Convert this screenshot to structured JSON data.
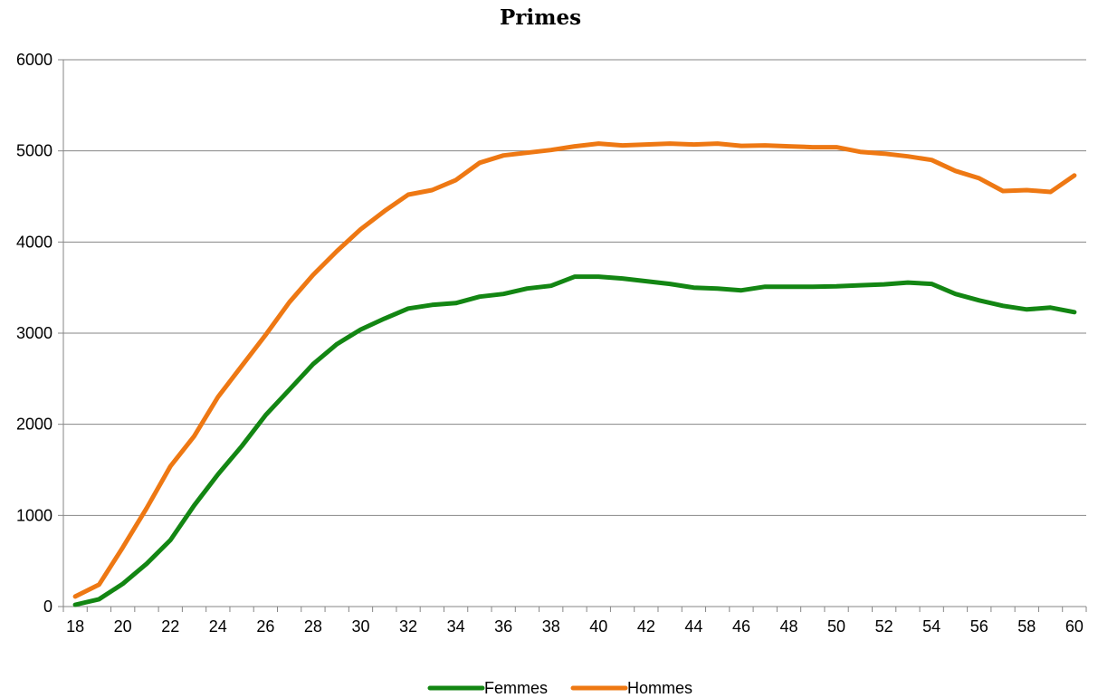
{
  "chart_data": {
    "type": "line",
    "title": "Primes",
    "xlabel": "",
    "ylabel": "",
    "ylim": [
      0,
      6000
    ],
    "yticks": [
      0,
      1000,
      2000,
      3000,
      4000,
      5000,
      6000
    ],
    "xlim": [
      18,
      60
    ],
    "xticks": [
      18,
      20,
      22,
      24,
      26,
      28,
      30,
      32,
      34,
      36,
      38,
      40,
      42,
      44,
      46,
      48,
      50,
      52,
      54,
      56,
      58,
      60
    ],
    "grid": true,
    "legend_position": "bottom",
    "x": [
      18,
      19,
      20,
      21,
      22,
      23,
      24,
      25,
      26,
      27,
      28,
      29,
      30,
      31,
      32,
      33,
      34,
      35,
      36,
      37,
      38,
      39,
      40,
      41,
      42,
      43,
      44,
      45,
      46,
      47,
      48,
      49,
      50,
      51,
      52,
      53,
      54,
      55,
      56,
      57,
      58,
      59,
      60
    ],
    "series": [
      {
        "name": "Femmes",
        "color": "#138613",
        "values": [
          20,
          80,
          250,
          470,
          730,
          1110,
          1450,
          1760,
          2100,
          2380,
          2660,
          2880,
          3040,
          3160,
          3270,
          3310,
          3330,
          3400,
          3430,
          3490,
          3520,
          3620,
          3620,
          3600,
          3570,
          3540,
          3500,
          3490,
          3470,
          3510,
          3510,
          3510,
          3515,
          3525,
          3535,
          3555,
          3540,
          3430,
          3360,
          3300,
          3260,
          3280,
          3230
        ]
      },
      {
        "name": "Hommes",
        "color": "#EE7813",
        "values": [
          110,
          240,
          650,
          1080,
          1540,
          1870,
          2300,
          2640,
          2980,
          3340,
          3640,
          3900,
          4140,
          4340,
          4520,
          4570,
          4680,
          4870,
          4950,
          4980,
          5010,
          5050,
          5080,
          5060,
          5070,
          5080,
          5070,
          5080,
          5055,
          5060,
          5050,
          5040,
          5040,
          4990,
          4970,
          4940,
          4900,
          4780,
          4700,
          4560,
          4570,
          4550,
          4730
        ]
      }
    ]
  }
}
